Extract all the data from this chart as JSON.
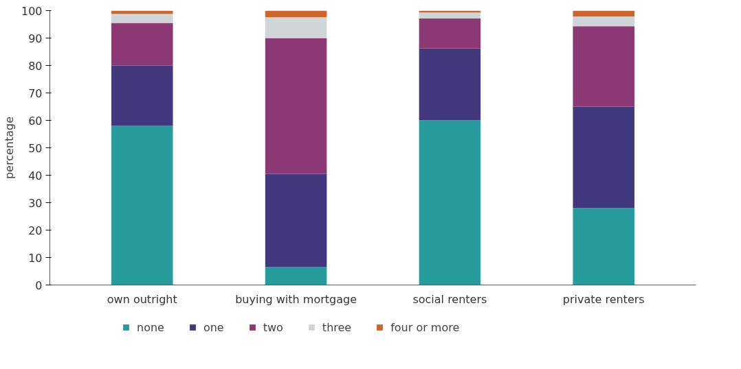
{
  "chart_data": {
    "type": "bar",
    "stacked": true,
    "ylabel": "percentage",
    "categories": [
      "own outright",
      "buying with mortgage",
      "social renters",
      "private renters"
    ],
    "series": [
      {
        "name": "none",
        "color": "#289c9c",
        "values": [
          58,
          6.5,
          60,
          28
        ]
      },
      {
        "name": "one",
        "color": "#42387d",
        "values": [
          22,
          34,
          26.2,
          37
        ]
      },
      {
        "name": "two",
        "color": "#8c3874",
        "values": [
          15.5,
          49.5,
          10.9,
          29.3
        ]
      },
      {
        "name": "three",
        "color": "#d0d5d8",
        "values": [
          3.3,
          7.6,
          2.2,
          3.6
        ]
      },
      {
        "name": "four or more",
        "color": "#cf652b",
        "values": [
          1.2,
          2.4,
          0.7,
          2.1
        ]
      }
    ],
    "ylim": [
      0,
      100
    ],
    "yticks": [
      0,
      10,
      20,
      30,
      40,
      50,
      60,
      70,
      80,
      90,
      100
    ],
    "grid": false,
    "legend": "bottom"
  }
}
